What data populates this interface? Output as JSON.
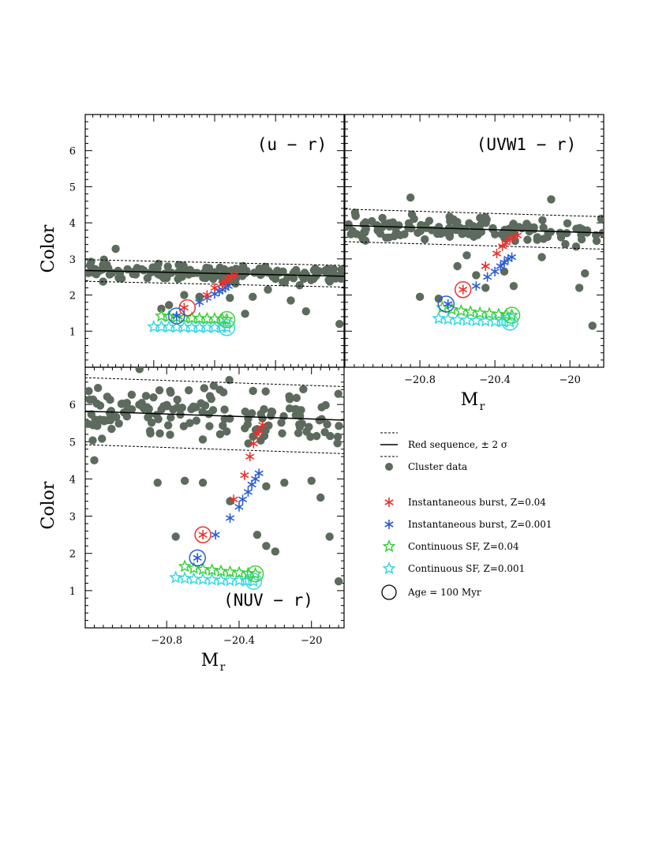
{
  "chart_data": {
    "type": "scatter",
    "colors": {
      "cluster": "#5c6b5d",
      "red_burst": "#e8332e",
      "blue_burst": "#2a5cd6",
      "green_cont": "#39d13a",
      "cyan_cont": "#38d6e0",
      "red_sequence": "#000000"
    },
    "legend": {
      "placement": "right",
      "entries": [
        {
          "key": "red_sequence",
          "symbol": "lines",
          "label": "Red sequence, ± 2 σ"
        },
        {
          "key": "cluster",
          "symbol": "filled-circle",
          "label": "Cluster data"
        },
        {
          "key": "red_burst",
          "symbol": "asterisk",
          "label": "Instantaneous burst, Z=0.04"
        },
        {
          "key": "blue_burst",
          "symbol": "asterisk",
          "label": "Instantaneous burst, Z=0.001"
        },
        {
          "key": "green_cont",
          "symbol": "open-star",
          "label": "Continuous SF, Z=0.04"
        },
        {
          "key": "cyan_cont",
          "symbol": "open-star",
          "label": "Continuous SF, Z=0.001"
        },
        {
          "key": "age_marker",
          "symbol": "open-circle",
          "label": "Age = 100 Myr"
        }
      ]
    },
    "panels": [
      {
        "id": "u-r",
        "title": "(u − r)",
        "ylabel": "Color",
        "xlabel": "",
        "show_x_ticklabels": false,
        "xlim": [
          -21.25,
          -19.55
        ],
        "ylim": [
          0,
          7
        ],
        "yticks": [
          1,
          2,
          3,
          4,
          5,
          6
        ],
        "xticks": [
          -20.8,
          -20.4,
          -20
        ],
        "red_sequence": {
          "x": [
            -21.25,
            -19.55
          ],
          "y": [
            2.68,
            2.52
          ],
          "sigma2": 0.3
        },
        "cluster": {
          "seed": 11,
          "n": 140,
          "scatter": 0.11,
          "outliers": [
            [
              -21.05,
              3.28
            ],
            [
              -20.6,
              2.0
            ],
            [
              -20.7,
              1.72
            ],
            [
              -20.15,
              1.95
            ],
            [
              -19.9,
              1.85
            ],
            [
              -20.5,
              1.95
            ],
            [
              -20.2,
              1.48
            ],
            [
              -20.75,
              1.62
            ],
            [
              -20.3,
              1.92
            ],
            [
              -19.8,
              1.55
            ],
            [
              -19.58,
              1.2
            ],
            [
              -20.05,
              2.15
            ]
          ]
        },
        "red_burst": [
          [
            -20.6,
            1.65
          ],
          [
            -20.45,
            2.0
          ],
          [
            -20.4,
            2.2
          ],
          [
            -20.35,
            2.3
          ],
          [
            -20.33,
            2.38
          ],
          [
            -20.31,
            2.45
          ],
          [
            -20.29,
            2.5
          ],
          [
            -20.27,
            2.55
          ]
        ],
        "blue_burst": [
          [
            -20.65,
            1.42
          ],
          [
            -20.5,
            1.8
          ],
          [
            -20.45,
            1.92
          ],
          [
            -20.4,
            2.03
          ],
          [
            -20.37,
            2.1
          ],
          [
            -20.35,
            2.15
          ],
          [
            -20.33,
            2.2
          ],
          [
            -20.31,
            2.25
          ]
        ],
        "green_cont": [
          [
            -20.75,
            1.42
          ],
          [
            -20.7,
            1.4
          ],
          [
            -20.65,
            1.38
          ],
          [
            -20.6,
            1.37
          ],
          [
            -20.55,
            1.36
          ],
          [
            -20.5,
            1.35
          ],
          [
            -20.45,
            1.34
          ],
          [
            -20.4,
            1.34
          ],
          [
            -20.35,
            1.33
          ],
          [
            -20.32,
            1.32
          ]
        ],
        "cyan_cont": [
          [
            -20.8,
            1.12
          ],
          [
            -20.75,
            1.12
          ],
          [
            -20.7,
            1.11
          ],
          [
            -20.65,
            1.11
          ],
          [
            -20.6,
            1.11
          ],
          [
            -20.55,
            1.1
          ],
          [
            -20.5,
            1.1
          ],
          [
            -20.45,
            1.1
          ],
          [
            -20.4,
            1.1
          ],
          [
            -20.35,
            1.1
          ],
          [
            -20.32,
            1.1
          ]
        ],
        "age_markers": [
          {
            "x": -20.58,
            "y": 1.65,
            "key": "red_burst"
          },
          {
            "x": -20.65,
            "y": 1.42,
            "key": "blue_burst"
          },
          {
            "x": -20.32,
            "y": 1.32,
            "key": "green_cont"
          },
          {
            "x": -20.32,
            "y": 1.1,
            "key": "cyan_cont"
          }
        ]
      },
      {
        "id": "uvw1-r",
        "title": "(UVW1 − r)",
        "ylabel": "",
        "xlabel": "M",
        "xlabel_sub": "r",
        "show_x_ticklabels": true,
        "xticklabels": [
          "−20.8",
          "−20.4",
          "−20"
        ],
        "xlim": [
          -21.2,
          -19.82
        ],
        "ylim": [
          0,
          7
        ],
        "yticks": [
          1,
          2,
          3,
          4,
          5,
          6
        ],
        "xticks": [
          -20.8,
          -20.4,
          -20
        ],
        "red_sequence": {
          "x": [
            -21.2,
            -19.82
          ],
          "y": [
            3.93,
            3.72
          ],
          "sigma2": 0.45
        },
        "cluster": {
          "seed": 23,
          "n": 135,
          "scatter": 0.18,
          "outliers": [
            [
              -20.85,
              4.7
            ],
            [
              -20.1,
              4.65
            ],
            [
              -20.5,
              2.55
            ],
            [
              -20.6,
              2.8
            ],
            [
              -20.8,
              1.95
            ],
            [
              -20.7,
              1.9
            ],
            [
              -20.45,
              2.2
            ],
            [
              -20.35,
              2.65
            ],
            [
              -20.3,
              2.25
            ],
            [
              -19.95,
              2.2
            ],
            [
              -19.88,
              1.15
            ],
            [
              -19.92,
              2.6
            ],
            [
              -20.15,
              3.05
            ],
            [
              -20.55,
              3.1
            ]
          ]
        },
        "red_burst": [
          [
            -20.57,
            2.15
          ],
          [
            -20.45,
            2.8
          ],
          [
            -20.39,
            3.15
          ],
          [
            -20.36,
            3.35
          ],
          [
            -20.34,
            3.45
          ],
          [
            -20.32,
            3.55
          ],
          [
            -20.3,
            3.6
          ],
          [
            -20.28,
            3.65
          ]
        ],
        "blue_burst": [
          [
            -20.65,
            1.75
          ],
          [
            -20.5,
            2.25
          ],
          [
            -20.44,
            2.5
          ],
          [
            -20.4,
            2.65
          ],
          [
            -20.37,
            2.8
          ],
          [
            -20.35,
            2.9
          ],
          [
            -20.33,
            3.0
          ],
          [
            -20.31,
            3.05
          ]
        ],
        "green_cont": [
          [
            -20.68,
            1.65
          ],
          [
            -20.63,
            1.6
          ],
          [
            -20.58,
            1.56
          ],
          [
            -20.53,
            1.53
          ],
          [
            -20.48,
            1.5
          ],
          [
            -20.43,
            1.48
          ],
          [
            -20.38,
            1.46
          ],
          [
            -20.34,
            1.45
          ],
          [
            -20.31,
            1.44
          ]
        ],
        "cyan_cont": [
          [
            -20.7,
            1.35
          ],
          [
            -20.65,
            1.33
          ],
          [
            -20.6,
            1.31
          ],
          [
            -20.55,
            1.3
          ],
          [
            -20.5,
            1.29
          ],
          [
            -20.45,
            1.28
          ],
          [
            -20.4,
            1.27
          ],
          [
            -20.36,
            1.26
          ],
          [
            -20.32,
            1.25
          ]
        ],
        "age_markers": [
          {
            "x": -20.57,
            "y": 2.15,
            "key": "red_burst"
          },
          {
            "x": -20.66,
            "y": 1.75,
            "key": "blue_burst"
          },
          {
            "x": -20.31,
            "y": 1.44,
            "key": "green_cont"
          },
          {
            "x": -20.32,
            "y": 1.25,
            "key": "cyan_cont"
          }
        ]
      },
      {
        "id": "nuv-r",
        "title": "(NUV − r)",
        "ylabel": "Color",
        "xlabel": "M",
        "xlabel_sub": "r",
        "show_x_ticklabels": true,
        "xticklabels": [
          "−20.8",
          "−20.4",
          "−20"
        ],
        "xlim": [
          -21.25,
          -19.82
        ],
        "ylim": [
          0,
          7
        ],
        "yticks": [
          1,
          2,
          3,
          4,
          5,
          6
        ],
        "xticks": [
          -20.8,
          -20.4,
          -20
        ],
        "red_sequence": {
          "x": [
            -21.25,
            -19.82
          ],
          "y": [
            5.82,
            5.58
          ],
          "sigma2": 0.9
        },
        "cluster": {
          "seed": 37,
          "n": 150,
          "scatter": 0.35,
          "outliers": [
            [
              -20.95,
              6.95
            ],
            [
              -20.85,
              3.9
            ],
            [
              -20.7,
              3.95
            ],
            [
              -20.6,
              3.9
            ],
            [
              -20.45,
              3.4
            ],
            [
              -20.25,
              3.8
            ],
            [
              -20.15,
              3.9
            ],
            [
              -20.0,
              3.95
            ],
            [
              -19.95,
              3.5
            ],
            [
              -20.75,
              2.45
            ],
            [
              -20.3,
              2.5
            ],
            [
              -20.2,
              2.05
            ],
            [
              -20.25,
              2.2
            ],
            [
              -19.9,
              2.45
            ],
            [
              -19.85,
              1.25
            ],
            [
              -21.2,
              4.5
            ]
          ]
        },
        "red_burst": [
          [
            -20.6,
            2.5
          ],
          [
            -20.43,
            3.45
          ],
          [
            -20.37,
            4.1
          ],
          [
            -20.34,
            4.6
          ],
          [
            -20.32,
            4.95
          ],
          [
            -20.3,
            5.2
          ],
          [
            -20.29,
            5.3
          ],
          [
            -20.27,
            5.45
          ]
        ],
        "blue_burst": [
          [
            -20.63,
            1.88
          ],
          [
            -20.53,
            2.5
          ],
          [
            -20.45,
            2.95
          ],
          [
            -20.4,
            3.25
          ],
          [
            -20.38,
            3.45
          ],
          [
            -20.35,
            3.65
          ],
          [
            -20.33,
            3.85
          ],
          [
            -20.31,
            4.0
          ],
          [
            -20.29,
            4.15
          ]
        ],
        "green_cont": [
          [
            -20.7,
            1.65
          ],
          [
            -20.65,
            1.6
          ],
          [
            -20.6,
            1.57
          ],
          [
            -20.55,
            1.55
          ],
          [
            -20.5,
            1.52
          ],
          [
            -20.45,
            1.5
          ],
          [
            -20.4,
            1.48
          ],
          [
            -20.35,
            1.46
          ],
          [
            -20.31,
            1.45
          ]
        ],
        "cyan_cont": [
          [
            -20.75,
            1.35
          ],
          [
            -20.7,
            1.33
          ],
          [
            -20.65,
            1.31
          ],
          [
            -20.6,
            1.3
          ],
          [
            -20.55,
            1.29
          ],
          [
            -20.5,
            1.28
          ],
          [
            -20.45,
            1.27
          ],
          [
            -20.4,
            1.27
          ],
          [
            -20.36,
            1.26
          ],
          [
            -20.32,
            1.25
          ]
        ],
        "age_markers": [
          {
            "x": -20.6,
            "y": 2.5,
            "key": "red_burst"
          },
          {
            "x": -20.63,
            "y": 1.88,
            "key": "blue_burst"
          },
          {
            "x": -20.31,
            "y": 1.45,
            "key": "green_cont"
          },
          {
            "x": -20.32,
            "y": 1.25,
            "key": "cyan_cont"
          }
        ]
      }
    ]
  }
}
